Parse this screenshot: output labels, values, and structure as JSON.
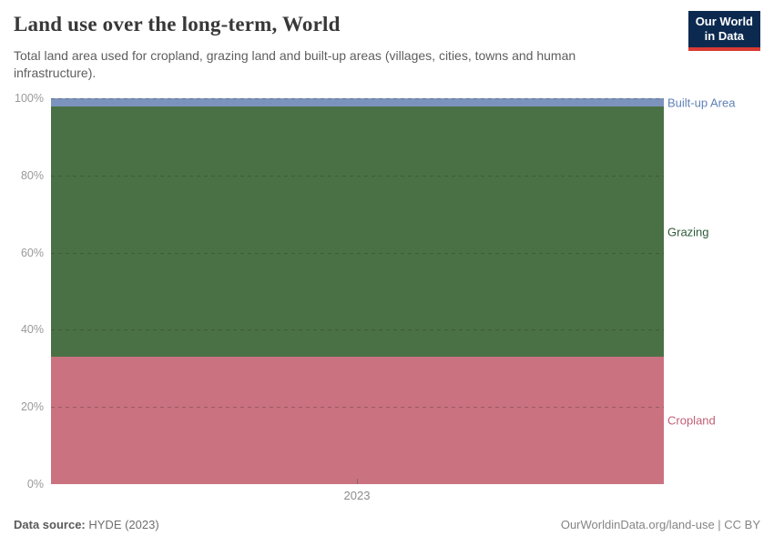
{
  "header": {
    "title": "Land use over the long-term, World",
    "subtitle": "Total land area used for cropland, grazing land and built-up areas (villages, cities, towns and human infrastructure).",
    "logo": {
      "line1": "Our World",
      "line2": "in Data",
      "bg_color": "#0c2a50",
      "accent_color": "#d93a34"
    }
  },
  "chart_data": {
    "type": "area",
    "stacked": true,
    "relative": true,
    "title": "Land use over the long-term, World",
    "xlabel": "",
    "ylabel": "",
    "ylim": [
      0,
      100
    ],
    "grid": "dashed-horizontal",
    "legend_position": "right-of-plot",
    "x_tick_labels": [
      "2023"
    ],
    "y_tick_labels": [
      "0%",
      "20%",
      "40%",
      "60%",
      "80%",
      "100%"
    ],
    "y_ticks_pct": [
      0,
      20,
      40,
      60,
      80,
      100
    ],
    "gridline_ticks_pct": [
      20,
      40,
      60,
      80,
      100
    ],
    "series": [
      {
        "name": "Built-up Area",
        "share_pct": 2.2,
        "area_color": "#7b93bd",
        "label_color": "#5e81b5"
      },
      {
        "name": "Grazing",
        "share_pct": 64.8,
        "area_color": "#4a7145",
        "label_color": "#2d5a38"
      },
      {
        "name": "Cropland",
        "share_pct": 33.0,
        "area_color": "#ca7280",
        "label_color": "#c05f74"
      }
    ]
  },
  "footer": {
    "source_label": "Data source:",
    "source_value": "HYDE (2023)",
    "credit": "OurWorldinData.org/land-use | CC BY"
  }
}
